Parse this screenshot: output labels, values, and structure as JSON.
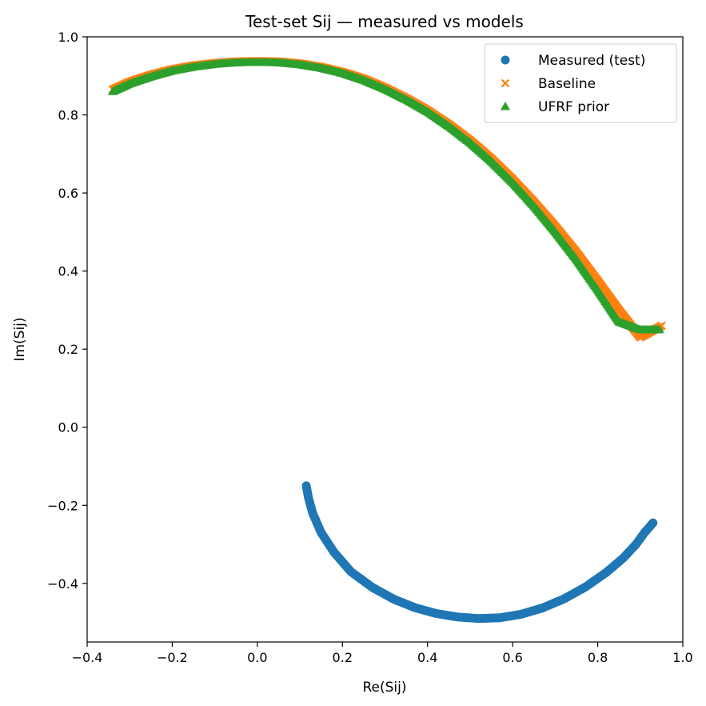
{
  "chart_data": {
    "type": "scatter",
    "title": "Test-set Sij — measured vs models",
    "xlabel": "Re(Sij)",
    "ylabel": "Im(Sij)",
    "xlim": [
      -0.4,
      1.0
    ],
    "ylim": [
      -0.55,
      1.0
    ],
    "xticks": [
      "−0.4",
      "−0.2",
      "0.0",
      "0.2",
      "0.4",
      "0.6",
      "0.8",
      "1.0"
    ],
    "yticks": [
      "−0.4",
      "−0.2",
      "0.0",
      "0.2",
      "0.4",
      "0.6",
      "0.8",
      "1.0"
    ],
    "grid": false,
    "legend_position": "top-right",
    "series": [
      {
        "name": "Measured (test)",
        "marker": "circle",
        "color": "#1f77b4",
        "points": [
          [
            0.115,
            -0.15
          ],
          [
            0.12,
            -0.18
          ],
          [
            0.13,
            -0.22
          ],
          [
            0.15,
            -0.27
          ],
          [
            0.18,
            -0.32
          ],
          [
            0.22,
            -0.37
          ],
          [
            0.27,
            -0.41
          ],
          [
            0.32,
            -0.44
          ],
          [
            0.37,
            -0.462
          ],
          [
            0.42,
            -0.477
          ],
          [
            0.47,
            -0.486
          ],
          [
            0.52,
            -0.49
          ],
          [
            0.57,
            -0.488
          ],
          [
            0.62,
            -0.479
          ],
          [
            0.67,
            -0.463
          ],
          [
            0.72,
            -0.44
          ],
          [
            0.77,
            -0.41
          ],
          [
            0.82,
            -0.372
          ],
          [
            0.86,
            -0.335
          ],
          [
            0.89,
            -0.3
          ],
          [
            0.91,
            -0.27
          ],
          [
            0.93,
            -0.245
          ]
        ]
      },
      {
        "name": "Baseline",
        "marker": "x",
        "color": "#ff7f0e",
        "points": [
          [
            -0.34,
            0.865
          ],
          [
            -0.3,
            0.885
          ],
          [
            -0.25,
            0.903
          ],
          [
            -0.2,
            0.917
          ],
          [
            -0.15,
            0.927
          ],
          [
            -0.1,
            0.933
          ],
          [
            -0.05,
            0.937
          ],
          [
            0.0,
            0.938
          ],
          [
            0.05,
            0.937
          ],
          [
            0.1,
            0.932
          ],
          [
            0.15,
            0.923
          ],
          [
            0.2,
            0.91
          ],
          [
            0.25,
            0.893
          ],
          [
            0.3,
            0.87
          ],
          [
            0.35,
            0.843
          ],
          [
            0.4,
            0.812
          ],
          [
            0.45,
            0.776
          ],
          [
            0.5,
            0.735
          ],
          [
            0.55,
            0.688
          ],
          [
            0.6,
            0.635
          ],
          [
            0.65,
            0.577
          ],
          [
            0.7,
            0.515
          ],
          [
            0.75,
            0.448
          ],
          [
            0.8,
            0.375
          ],
          [
            0.85,
            0.3
          ],
          [
            0.9,
            0.23
          ],
          [
            0.95,
            0.26
          ]
        ]
      },
      {
        "name": "UFRF prior",
        "marker": "triangle",
        "color": "#2ca02c",
        "points": [
          [
            -0.34,
            0.86
          ],
          [
            -0.3,
            0.88
          ],
          [
            -0.25,
            0.898
          ],
          [
            -0.2,
            0.913
          ],
          [
            -0.15,
            0.923
          ],
          [
            -0.1,
            0.93
          ],
          [
            -0.05,
            0.934
          ],
          [
            0.0,
            0.935
          ],
          [
            0.05,
            0.934
          ],
          [
            0.1,
            0.929
          ],
          [
            0.15,
            0.92
          ],
          [
            0.2,
            0.907
          ],
          [
            0.25,
            0.889
          ],
          [
            0.3,
            0.866
          ],
          [
            0.35,
            0.839
          ],
          [
            0.4,
            0.808
          ],
          [
            0.45,
            0.771
          ],
          [
            0.5,
            0.729
          ],
          [
            0.55,
            0.681
          ],
          [
            0.6,
            0.627
          ],
          [
            0.65,
            0.567
          ],
          [
            0.7,
            0.501
          ],
          [
            0.75,
            0.43
          ],
          [
            0.8,
            0.352
          ],
          [
            0.85,
            0.27
          ],
          [
            0.9,
            0.25
          ],
          [
            0.945,
            0.25
          ]
        ]
      }
    ]
  }
}
